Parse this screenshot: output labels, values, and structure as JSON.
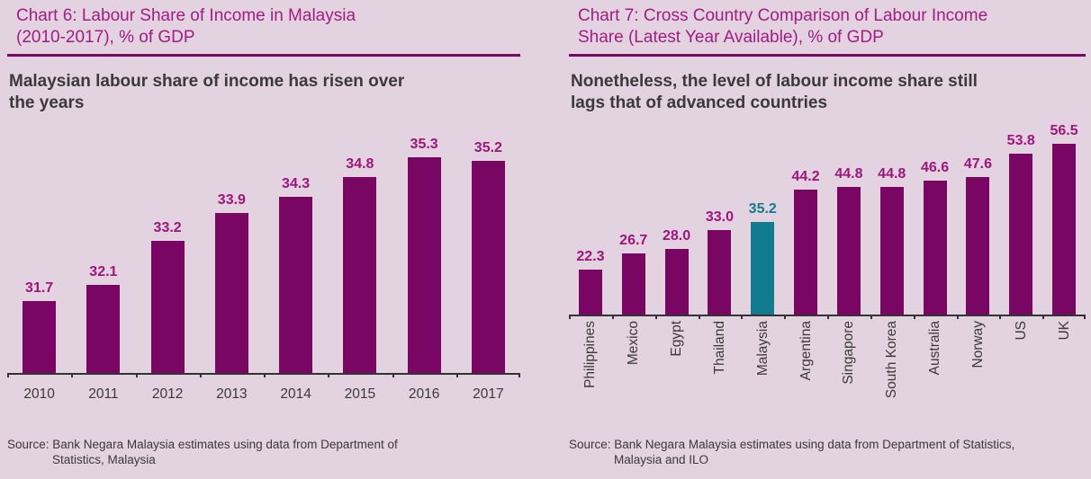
{
  "page": {
    "background": "#e3d2df"
  },
  "colors": {
    "bar": "#7a0663",
    "highlight_bar": "#117c8f",
    "title": "#a21c84",
    "value_label": "#a0147c",
    "highlight_value_label": "#117c8f",
    "rule": "#7a0663",
    "text_dark": "#3a3a3a",
    "axis": "#333333"
  },
  "chart_data": [
    {
      "type": "bar",
      "title": "Chart 6: Labour Share of Income in Malaysia (2010-2017), % of GDP",
      "title_lines": [
        "Chart 6: Labour Share of Income in Malaysia",
        "(2010-2017), % of GDP"
      ],
      "subtitle": "Malaysian labour share of income has risen over the years",
      "subtitle_lines": [
        "Malaysian labour share of income has risen over",
        "the years"
      ],
      "categories": [
        "2010",
        "2011",
        "2012",
        "2013",
        "2014",
        "2015",
        "2016",
        "2017"
      ],
      "values": [
        31.7,
        32.1,
        33.2,
        33.9,
        34.3,
        34.8,
        35.3,
        35.2
      ],
      "value_label_decimals": 1,
      "xlabel": "",
      "ylabel": "",
      "unit": "% of GDP",
      "ylim": [
        29.9,
        36.1
      ],
      "grid": false,
      "legend": false,
      "source": "Source: Bank Negara Malaysia estimates using data from Department of Statistics, Malaysia",
      "source_lines": [
        "Source: Bank Negara Malaysia estimates using data from Department of",
        "Statistics, Malaysia"
      ]
    },
    {
      "type": "bar",
      "title": "Chart 7: Cross Country Comparison of Labour Income Share (Latest Year Available), % of GDP",
      "title_lines": [
        "Chart 7: Cross Country Comparison of Labour Income",
        "Share (Latest Year Available), % of GDP"
      ],
      "subtitle": "Nonetheless, the level of labour income share still lags that of advanced countries",
      "subtitle_lines": [
        "Nonetheless, the level of labour income share still",
        "lags that of advanced countries"
      ],
      "categories": [
        "Philippines",
        "Mexico",
        "Egypt",
        "Thailand",
        "Malaysia",
        "Argentina",
        "Singapore",
        "South Korea",
        "Australia",
        "Norway",
        "US",
        "UK"
      ],
      "values": [
        22.3,
        26.7,
        28.0,
        33.0,
        35.2,
        44.2,
        44.8,
        44.8,
        46.6,
        47.6,
        53.8,
        56.5
      ],
      "value_label_decimals": 1,
      "highlight_category": "Malaysia",
      "xlabel": "",
      "ylabel": "",
      "unit": "% of GDP",
      "ylim": [
        10,
        63
      ],
      "grid": false,
      "legend": false,
      "source": "Source: Bank Negara Malaysia estimates using data from Department of Statistics, Malaysia and ILO",
      "source_lines": [
        "Source: Bank Negara Malaysia estimates using data from Department of Statistics,",
        "Malaysia and ILO"
      ]
    }
  ]
}
